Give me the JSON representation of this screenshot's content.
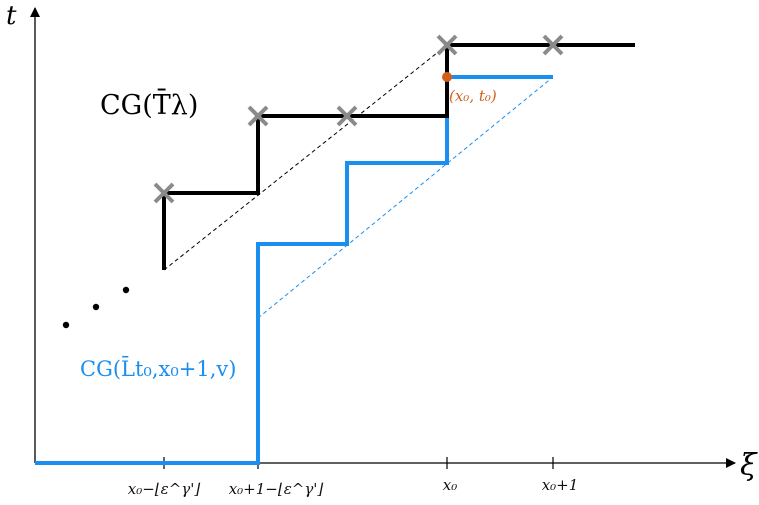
{
  "axes": {
    "x_label": "ξ",
    "y_label": "t",
    "ticks": [
      "x₀−⌊ε^γ'⌋",
      "x₀+1−⌊ε^γ'⌋",
      "x₀",
      "x₀+1"
    ]
  },
  "labels": {
    "black_curve": "CG(T̄λ)",
    "blue_curve": "CG(L̄t₀,x₀+1,v)",
    "point": "(x₀, t₀)"
  },
  "colors": {
    "black_curve": "#000000",
    "blue_curve": "#1a8ff0",
    "cross": "#8a8a8a",
    "point": "#d2601a"
  }
}
